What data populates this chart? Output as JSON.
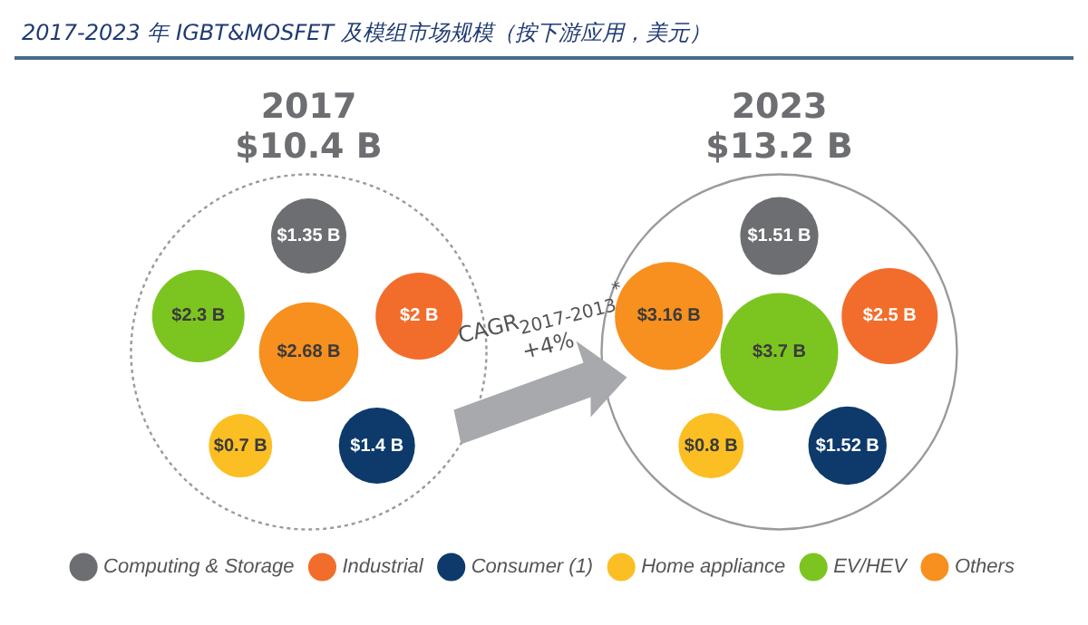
{
  "chart_data": {
    "type": "other",
    "title": "2017-2023 年 IGBT&MOSFET 及模组市场规模（按下游应用，美元）",
    "categories": [
      "2017",
      "2023"
    ],
    "series": [
      {
        "name": "Computing & Storage",
        "color": "#6d6e71",
        "values": [
          1.35,
          1.51
        ],
        "value_labels": [
          "$1.35 B",
          "$1.51 B"
        ]
      },
      {
        "name": "Industrial",
        "color": "#f26d2c",
        "values": [
          2,
          2.5
        ],
        "value_labels": [
          "$2 B",
          "$2.5 B"
        ]
      },
      {
        "name": "Consumer (1)",
        "color": "#0d3a6b",
        "values": [
          1.4,
          1.52
        ],
        "value_labels": [
          "$1.4 B",
          "$1.52 B"
        ]
      },
      {
        "name": "Home appliance",
        "color": "#fbbf24",
        "values": [
          0.7,
          0.8
        ],
        "value_labels": [
          "$0.7 B",
          "$0.8 B"
        ]
      },
      {
        "name": "EV/HEV",
        "color": "#7cc520",
        "values": [
          2.3,
          3.7
        ],
        "value_labels": [
          "$2.3 B",
          "$3.7 B"
        ]
      },
      {
        "name": "Others",
        "color": "#f7901e",
        "values": [
          2.68,
          3.16
        ],
        "value_labels": [
          "$2.68 B",
          "$3.16 B"
        ]
      }
    ],
    "totals": [
      "$10.4 B",
      "$13.2 B"
    ],
    "annotations": [
      "CAGR$_{2017-2013}$$^{*}$ +4%"
    ],
    "legend": "bottom"
  }
}
